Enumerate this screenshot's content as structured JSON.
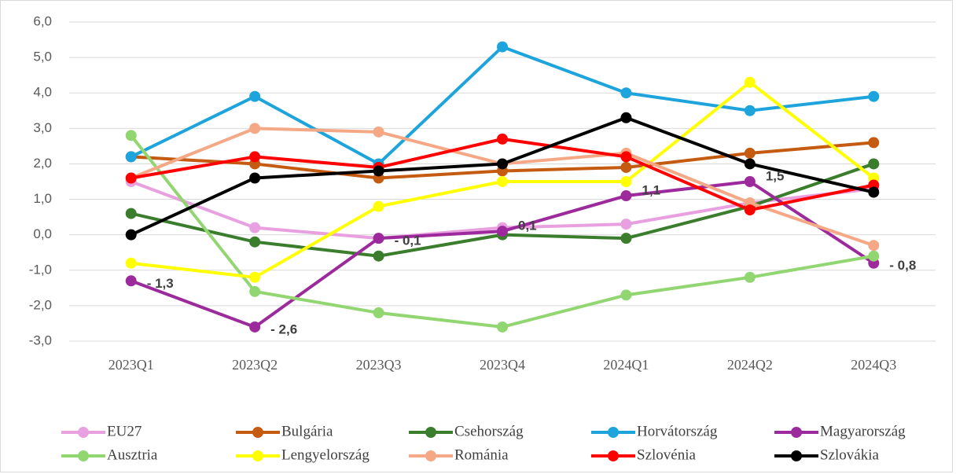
{
  "chart_data": {
    "type": "line",
    "categories": [
      "2023Q1",
      "2023Q2",
      "2023Q3",
      "2023Q4",
      "2024Q1",
      "2024Q2",
      "2024Q3"
    ],
    "ylim": [
      -3,
      6
    ],
    "yticks": [
      {
        "value": -3,
        "label": "-3,0"
      },
      {
        "value": -2,
        "label": "-2,0"
      },
      {
        "value": -1,
        "label": "-1,0"
      },
      {
        "value": 0,
        "label": "0,0"
      },
      {
        "value": 1,
        "label": "1,0"
      },
      {
        "value": 2,
        "label": "2,0"
      },
      {
        "value": 3,
        "label": "3,0"
      },
      {
        "value": 4,
        "label": "4,0"
      },
      {
        "value": 5,
        "label": "5,0"
      },
      {
        "value": 6,
        "label": "6,0"
      }
    ],
    "grid": true,
    "legend": "bottom",
    "series": [
      {
        "name": "EU27",
        "color": "#e8a0e0",
        "values": [
          1.5,
          0.2,
          -0.1,
          0.2,
          0.3,
          0.9,
          1.3
        ]
      },
      {
        "name": "Bulgária",
        "color": "#c55a11",
        "values": [
          2.2,
          2.0,
          1.6,
          1.8,
          1.9,
          2.3,
          2.6
        ]
      },
      {
        "name": "Csehország",
        "color": "#3a7d2c",
        "values": [
          0.6,
          -0.2,
          -0.6,
          0.0,
          -0.1,
          0.8,
          2.0
        ]
      },
      {
        "name": "Horvátország",
        "color": "#1ea4dc",
        "values": [
          2.2,
          3.9,
          2.0,
          5.3,
          4.0,
          3.5,
          3.9
        ]
      },
      {
        "name": "Magyarország",
        "color": "#9c2a9c",
        "values": [
          -1.3,
          -2.6,
          -0.1,
          0.1,
          1.1,
          1.5,
          -0.8
        ],
        "value_labels": [
          "- 1,3",
          "- 2,6",
          "- 0,1",
          "0,1",
          "1,1",
          "1,5",
          "- 0,8"
        ]
      },
      {
        "name": "Ausztria",
        "color": "#92d672",
        "values": [
          2.8,
          -1.6,
          -2.2,
          -2.6,
          -1.7,
          -1.2,
          -0.6
        ]
      },
      {
        "name": "Lengyelország",
        "color": "#ffff00",
        "values": [
          -0.8,
          -1.2,
          0.8,
          1.5,
          1.5,
          4.3,
          1.6
        ]
      },
      {
        "name": "Románia",
        "color": "#f4a885",
        "values": [
          1.6,
          3.0,
          2.9,
          2.0,
          2.3,
          0.9,
          -0.3
        ]
      },
      {
        "name": "Szlovénia",
        "color": "#ff0000",
        "values": [
          1.6,
          2.2,
          1.9,
          2.7,
          2.2,
          0.7,
          1.4
        ]
      },
      {
        "name": "Szlovákia",
        "color": "#000000",
        "values": [
          0.0,
          1.6,
          1.8,
          2.0,
          3.3,
          2.0,
          1.2
        ]
      }
    ]
  }
}
